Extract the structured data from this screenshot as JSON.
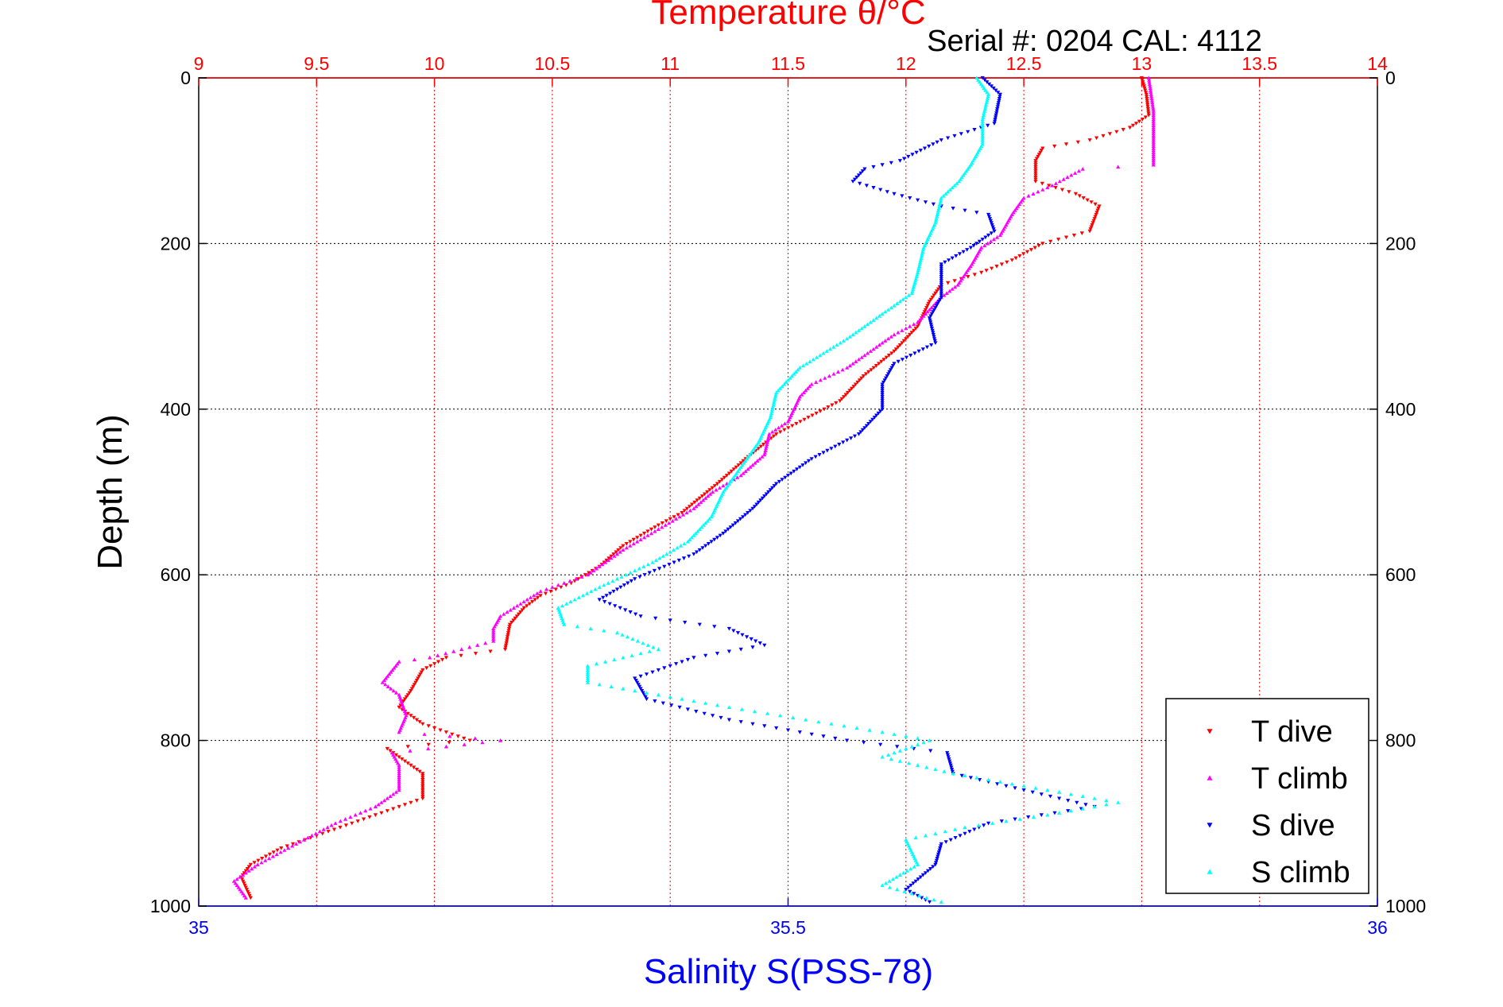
{
  "chart_data": {
    "type": "scatter",
    "title": "Temperature θ/°C",
    "subtitle": "Serial #: 0204  CAL: 4112",
    "ylabel": "Depth (m)",
    "x_top_label": "Temperature θ/°C",
    "x_bottom_label": "Salinity S(PSS-78)",
    "top_axis": {
      "range": [
        9,
        14
      ],
      "ticks": [
        9,
        9.5,
        10,
        10.5,
        11,
        11.5,
        12,
        12.5,
        13,
        13.5,
        14
      ],
      "tick_labels": [
        "9",
        "9.5",
        "10",
        "10.5",
        "11",
        "11.5",
        "12",
        "12.5",
        "13",
        "13.5",
        "14"
      ],
      "color": "#ff0000"
    },
    "bottom_axis": {
      "range": [
        35,
        36
      ],
      "ticks": [
        35,
        35.5,
        36
      ],
      "tick_labels": [
        "35",
        "35.5",
        "36"
      ],
      "color": "#0000ff"
    },
    "y_axis": {
      "range": [
        0,
        1000
      ],
      "reversed": true,
      "ticks": [
        0,
        200,
        400,
        600,
        800,
        1000
      ],
      "tick_labels": [
        "0",
        "200",
        "400",
        "600",
        "800",
        "1000"
      ]
    },
    "grid": true,
    "legend_position": "bottom-right",
    "series": [
      {
        "name": "T dive",
        "axis": "top",
        "color": "#ff0000",
        "marker": "triangle-down",
        "points": [
          [
            13.0,
            0
          ],
          [
            13.02,
            20
          ],
          [
            13.03,
            45
          ],
          [
            12.95,
            60
          ],
          [
            12.78,
            75
          ],
          [
            12.58,
            85
          ],
          [
            12.55,
            100
          ],
          [
            12.55,
            125
          ],
          [
            12.72,
            140
          ],
          [
            12.82,
            155
          ],
          [
            12.78,
            185
          ],
          [
            12.58,
            200
          ],
          [
            12.45,
            220
          ],
          [
            12.32,
            235
          ],
          [
            12.15,
            250
          ],
          [
            12.1,
            270
          ],
          [
            12.05,
            300
          ],
          [
            11.95,
            330
          ],
          [
            11.82,
            360
          ],
          [
            11.72,
            390
          ],
          [
            11.62,
            405
          ],
          [
            11.45,
            430
          ],
          [
            11.32,
            460
          ],
          [
            11.2,
            490
          ],
          [
            11.05,
            525
          ],
          [
            10.95,
            540
          ],
          [
            10.8,
            565
          ],
          [
            10.7,
            590
          ],
          [
            10.58,
            610
          ],
          [
            10.45,
            625
          ],
          [
            10.38,
            640
          ],
          [
            10.32,
            660
          ],
          [
            10.3,
            690
          ],
          [
            10.05,
            700
          ],
          [
            9.95,
            715
          ],
          [
            9.9,
            740
          ],
          [
            9.85,
            760
          ],
          [
            9.95,
            780
          ],
          [
            10.15,
            800
          ],
          [
            9.8,
            810
          ],
          [
            9.95,
            840
          ],
          [
            9.95,
            870
          ],
          [
            9.75,
            890
          ],
          [
            9.55,
            910
          ],
          [
            9.35,
            930
          ],
          [
            9.22,
            950
          ],
          [
            9.18,
            965
          ],
          [
            9.22,
            990
          ]
        ]
      },
      {
        "name": "T climb",
        "axis": "top",
        "color": "#ff00ff",
        "marker": "triangle-up",
        "points": [
          [
            13.03,
            0
          ],
          [
            13.05,
            40
          ],
          [
            13.05,
            105
          ],
          [
            12.75,
            110
          ],
          [
            12.62,
            130
          ],
          [
            12.5,
            145
          ],
          [
            12.45,
            165
          ],
          [
            12.4,
            190
          ],
          [
            12.32,
            205
          ],
          [
            12.28,
            225
          ],
          [
            12.22,
            250
          ],
          [
            12.15,
            265
          ],
          [
            12.05,
            295
          ],
          [
            11.95,
            310
          ],
          [
            11.85,
            330
          ],
          [
            11.75,
            350
          ],
          [
            11.6,
            370
          ],
          [
            11.55,
            385
          ],
          [
            11.5,
            415
          ],
          [
            11.42,
            430
          ],
          [
            11.4,
            455
          ],
          [
            11.3,
            480
          ],
          [
            11.18,
            500
          ],
          [
            11.1,
            520
          ],
          [
            10.95,
            545
          ],
          [
            10.8,
            570
          ],
          [
            10.65,
            600
          ],
          [
            10.45,
            620
          ],
          [
            10.28,
            650
          ],
          [
            10.25,
            665
          ],
          [
            10.25,
            680
          ],
          [
            9.98,
            700
          ],
          [
            9.85,
            705
          ],
          [
            9.78,
            730
          ],
          [
            9.85,
            745
          ],
          [
            9.88,
            770
          ],
          [
            9.85,
            790
          ],
          [
            10.28,
            800
          ],
          [
            9.82,
            815
          ],
          [
            9.85,
            830
          ],
          [
            9.85,
            860
          ],
          [
            9.75,
            880
          ],
          [
            9.58,
            900
          ],
          [
            9.38,
            930
          ],
          [
            9.25,
            950
          ],
          [
            9.15,
            970
          ],
          [
            9.2,
            990
          ]
        ]
      },
      {
        "name": "S dive",
        "axis": "bottom",
        "color": "#0000ff",
        "marker": "triangle-down",
        "points": [
          [
            35.665,
            0
          ],
          [
            35.68,
            20
          ],
          [
            35.675,
            55
          ],
          [
            35.63,
            75
          ],
          [
            35.595,
            100
          ],
          [
            35.565,
            110
          ],
          [
            35.555,
            125
          ],
          [
            35.59,
            140
          ],
          [
            35.63,
            155
          ],
          [
            35.67,
            165
          ],
          [
            35.675,
            185
          ],
          [
            35.655,
            205
          ],
          [
            35.63,
            225
          ],
          [
            35.63,
            245
          ],
          [
            35.63,
            265
          ],
          [
            35.62,
            290
          ],
          [
            35.625,
            320
          ],
          [
            35.59,
            345
          ],
          [
            35.58,
            370
          ],
          [
            35.58,
            400
          ],
          [
            35.56,
            430
          ],
          [
            35.52,
            460
          ],
          [
            35.49,
            490
          ],
          [
            35.47,
            520
          ],
          [
            35.445,
            550
          ],
          [
            35.42,
            575
          ],
          [
            35.395,
            590
          ],
          [
            35.37,
            605
          ],
          [
            35.34,
            630
          ],
          [
            35.375,
            650
          ],
          [
            35.45,
            665
          ],
          [
            35.48,
            685
          ],
          [
            35.42,
            700
          ],
          [
            35.37,
            725
          ],
          [
            35.38,
            750
          ],
          [
            35.45,
            775
          ],
          [
            35.55,
            800
          ],
          [
            35.635,
            815
          ],
          [
            35.64,
            840
          ],
          [
            35.7,
            860
          ],
          [
            35.76,
            880
          ],
          [
            35.67,
            900
          ],
          [
            35.63,
            925
          ],
          [
            35.625,
            950
          ],
          [
            35.6,
            980
          ],
          [
            35.62,
            995
          ]
        ]
      },
      {
        "name": "S climb",
        "axis": "bottom",
        "color": "#00ffff",
        "marker": "triangle-up",
        "points": [
          [
            35.66,
            0
          ],
          [
            35.67,
            20
          ],
          [
            35.665,
            50
          ],
          [
            35.665,
            80
          ],
          [
            35.655,
            105
          ],
          [
            35.645,
            125
          ],
          [
            35.63,
            145
          ],
          [
            35.625,
            175
          ],
          [
            35.615,
            205
          ],
          [
            35.61,
            235
          ],
          [
            35.605,
            260
          ],
          [
            35.575,
            290
          ],
          [
            35.55,
            315
          ],
          [
            35.51,
            350
          ],
          [
            35.49,
            380
          ],
          [
            35.485,
            410
          ],
          [
            35.475,
            440
          ],
          [
            35.46,
            470
          ],
          [
            35.445,
            500
          ],
          [
            35.435,
            530
          ],
          [
            35.415,
            560
          ],
          [
            35.385,
            585
          ],
          [
            35.34,
            615
          ],
          [
            35.305,
            640
          ],
          [
            35.31,
            660
          ],
          [
            35.355,
            670
          ],
          [
            35.39,
            690
          ],
          [
            35.33,
            710
          ],
          [
            35.33,
            730
          ],
          [
            35.45,
            760
          ],
          [
            35.58,
            790
          ],
          [
            35.62,
            800
          ],
          [
            35.58,
            820
          ],
          [
            35.64,
            840
          ],
          [
            35.72,
            860
          ],
          [
            35.78,
            875
          ],
          [
            35.72,
            890
          ],
          [
            35.65,
            905
          ],
          [
            35.6,
            920
          ],
          [
            35.61,
            950
          ],
          [
            35.58,
            975
          ],
          [
            35.63,
            995
          ]
        ]
      }
    ]
  }
}
